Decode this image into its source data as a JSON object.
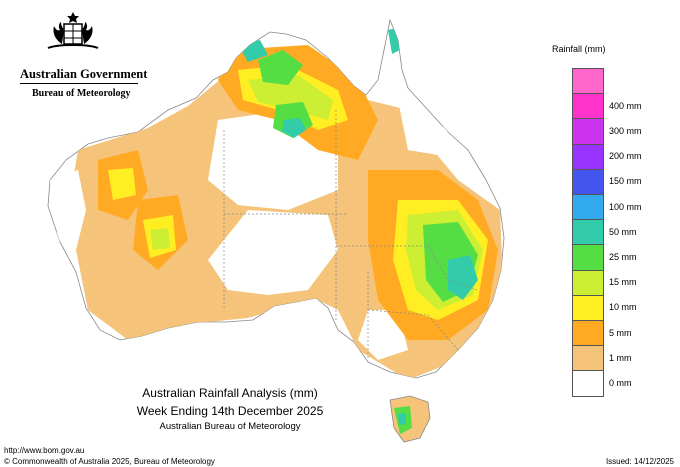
{
  "header": {
    "government": "Australian Government",
    "bureau": "Bureau of Meteorology"
  },
  "legend": {
    "title": "Rainfall (mm)",
    "items": [
      {
        "label": "",
        "color": "#ff66cc"
      },
      {
        "label": "400 mm",
        "color": "#ff33cc"
      },
      {
        "label": "300 mm",
        "color": "#cc33ee"
      },
      {
        "label": "200 mm",
        "color": "#9933ff"
      },
      {
        "label": "150 mm",
        "color": "#4455ee"
      },
      {
        "label": "100 mm",
        "color": "#33aaee"
      },
      {
        "label": "50 mm",
        "color": "#33ccaa"
      },
      {
        "label": "25 mm",
        "color": "#55dd44"
      },
      {
        "label": "15 mm",
        "color": "#ccee33"
      },
      {
        "label": "10 mm",
        "color": "#ffee22"
      },
      {
        "label": "5 mm",
        "color": "#ffaa22"
      },
      {
        "label": "1 mm",
        "color": "#f5c47a"
      },
      {
        "label": "0 mm",
        "color": "#ffffff"
      }
    ]
  },
  "caption": {
    "title": "Australian Rainfall Analysis (mm)",
    "week": "Week Ending 14th December 2025",
    "agency": "Australian Bureau of Meteorology"
  },
  "footer": {
    "url": "http://www.bom.gov.au",
    "copyright": "© Commonwealth of Australia 2025, Bureau of Meteorology",
    "issued": "Issued: 14/12/2025"
  }
}
